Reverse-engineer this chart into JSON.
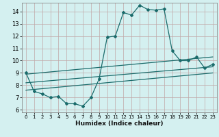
{
  "xlabel": "Humidex (Indice chaleur)",
  "ylabel": "",
  "background_color": "#d4f0f0",
  "grid_color": "#c0a8a8",
  "line_color": "#1a6b6b",
  "xlim": [
    -0.5,
    23.5
  ],
  "ylim": [
    5.8,
    14.7
  ],
  "yticks": [
    6,
    7,
    8,
    9,
    10,
    11,
    12,
    13,
    14
  ],
  "xticks": [
    0,
    1,
    2,
    3,
    4,
    5,
    6,
    7,
    8,
    9,
    10,
    11,
    12,
    13,
    14,
    15,
    16,
    17,
    18,
    19,
    20,
    21,
    22,
    23
  ],
  "series1_x": [
    0,
    1,
    2,
    3,
    4,
    5,
    6,
    7,
    8,
    9,
    10,
    11,
    12,
    13,
    14,
    15,
    16,
    17,
    18,
    19,
    20,
    21,
    22,
    23
  ],
  "series1_y": [
    9.0,
    7.5,
    7.3,
    7.0,
    7.1,
    6.5,
    6.5,
    6.3,
    7.0,
    8.5,
    11.9,
    12.0,
    13.9,
    13.7,
    14.5,
    14.15,
    14.1,
    14.2,
    10.8,
    10.0,
    10.0,
    10.3,
    9.4,
    9.7
  ],
  "series2_x": [
    0,
    23
  ],
  "series2_y": [
    8.9,
    10.3
  ],
  "series3_x": [
    0,
    23
  ],
  "series3_y": [
    8.2,
    9.5
  ],
  "series4_x": [
    0,
    23
  ],
  "series4_y": [
    7.6,
    9.0
  ]
}
